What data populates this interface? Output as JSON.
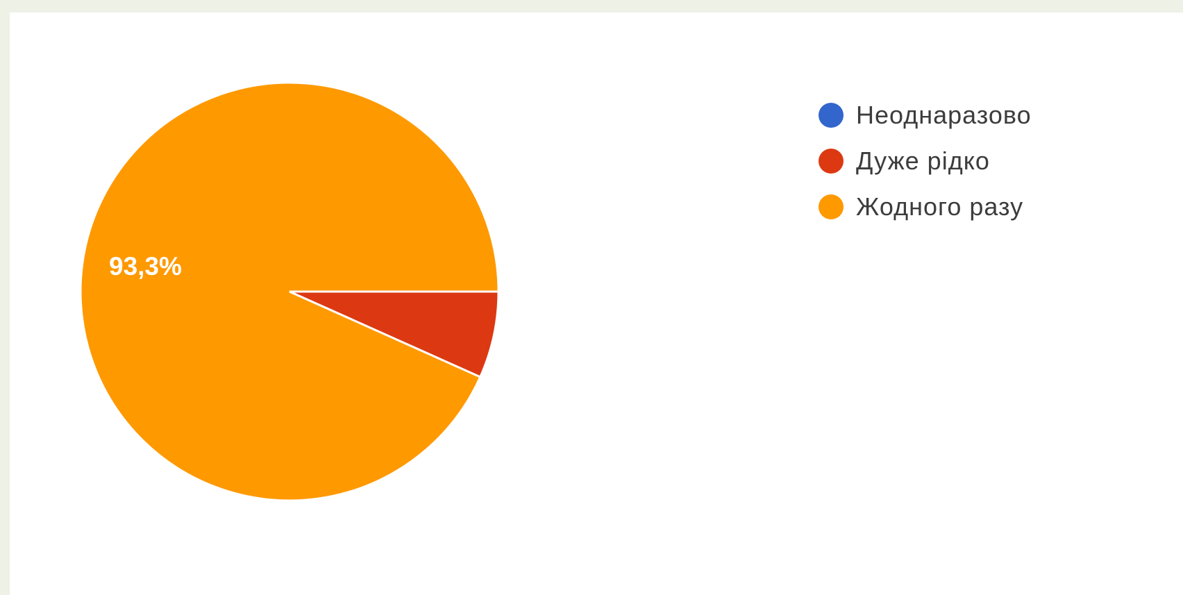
{
  "chart_data": {
    "type": "pie",
    "categories": [
      "Неоднаразово",
      "Дуже рідко",
      "Жодного разу"
    ],
    "values": [
      0,
      6.7,
      93.3
    ],
    "colors": [
      "#3366cc",
      "#dc3912",
      "#ff9900"
    ],
    "data_labels": [
      "",
      "",
      "93,3%"
    ],
    "legend_position": "right"
  }
}
